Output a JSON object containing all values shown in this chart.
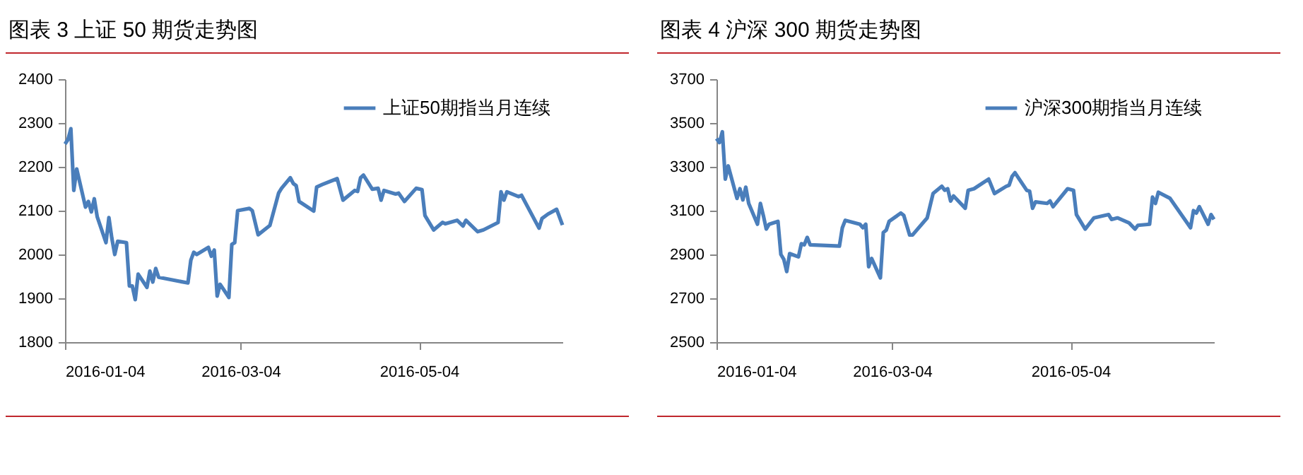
{
  "chart_data": [
    {
      "type": "line",
      "title": "图表 3 上证 50 期货走势图",
      "legend": "top right",
      "ylim": [
        1800,
        2400
      ],
      "yticks": [
        1800,
        1900,
        2000,
        2100,
        2200,
        2300,
        2400
      ],
      "xlim": [
        "2016-01-04",
        "2016-06-22"
      ],
      "xticks": [
        "2016-01-04",
        "2016-03-04",
        "2016-05-04"
      ],
      "x": [
        "2016-01-04",
        "2016-01-05",
        "2016-01-06",
        "2016-01-07",
        "2016-01-08",
        "2016-01-11",
        "2016-01-12",
        "2016-01-13",
        "2016-01-14",
        "2016-01-15",
        "2016-01-18",
        "2016-01-19",
        "2016-01-20",
        "2016-01-21",
        "2016-01-22",
        "2016-01-25",
        "2016-01-26",
        "2016-01-27",
        "2016-01-28",
        "2016-01-29",
        "2016-02-01",
        "2016-02-02",
        "2016-02-03",
        "2016-02-04",
        "2016-02-05",
        "2016-02-15",
        "2016-02-16",
        "2016-02-17",
        "2016-02-18",
        "2016-02-22",
        "2016-02-23",
        "2016-02-24",
        "2016-02-25",
        "2016-02-26",
        "2016-02-29",
        "2016-03-01",
        "2016-03-02",
        "2016-03-03",
        "2016-03-07",
        "2016-03-08",
        "2016-03-10",
        "2016-03-14",
        "2016-03-17",
        "2016-03-18",
        "2016-03-21",
        "2016-03-22",
        "2016-03-23",
        "2016-03-24",
        "2016-03-29",
        "2016-03-30",
        "2016-04-01",
        "2016-04-06",
        "2016-04-08",
        "2016-04-12",
        "2016-04-13",
        "2016-04-14",
        "2016-04-15",
        "2016-04-18",
        "2016-04-20",
        "2016-04-21",
        "2016-04-22",
        "2016-04-26",
        "2016-04-27",
        "2016-04-29",
        "2016-05-03",
        "2016-05-05",
        "2016-05-06",
        "2016-05-09",
        "2016-05-12",
        "2016-05-13",
        "2016-05-17",
        "2016-05-19",
        "2016-05-20",
        "2016-05-24",
        "2016-05-26",
        "2016-05-31",
        "2016-06-01",
        "2016-06-02",
        "2016-06-03",
        "2016-06-07",
        "2016-06-08",
        "2016-06-14",
        "2016-06-15",
        "2016-06-17",
        "2016-06-20",
        "2016-06-22"
      ],
      "series": [
        {
          "name": "上证50期指当月连续",
          "color": "#4a7ebb",
          "values": [
            2252,
            2262,
            2287,
            2146,
            2195,
            2108,
            2121,
            2097,
            2127,
            2086,
            2027,
            2084,
            2037,
            2000,
            2030,
            2027,
            1928,
            1928,
            1897,
            1955,
            1925,
            1962,
            1937,
            1968,
            1948,
            1935,
            1987,
            2005,
            2000,
            2016,
            1996,
            2010,
            1905,
            1932,
            1902,
            2023,
            2027,
            2100,
            2105,
            2100,
            2045,
            2066,
            2140,
            2151,
            2175,
            2162,
            2157,
            2121,
            2099,
            2154,
            2160,
            2173,
            2124,
            2146,
            2144,
            2175,
            2181,
            2149,
            2151,
            2124,
            2146,
            2138,
            2140,
            2121,
            2151,
            2148,
            2089,
            2056,
            2073,
            2070,
            2078,
            2065,
            2078,
            2052,
            2056,
            2073,
            2143,
            2124,
            2143,
            2132,
            2135,
            2060,
            2082,
            2092,
            2103,
            2067
          ]
        }
      ]
    },
    {
      "type": "line",
      "title": "图表 4 沪深 300 期货走势图",
      "legend": "top right",
      "ylim": [
        2500,
        3700
      ],
      "yticks": [
        2500,
        2700,
        2900,
        3100,
        3300,
        3500,
        3700
      ],
      "xlim": [
        "2016-01-04",
        "2016-06-22"
      ],
      "xticks": [
        "2016-01-04",
        "2016-03-04",
        "2016-05-04"
      ],
      "x": [
        "2016-01-04",
        "2016-01-05",
        "2016-01-06",
        "2016-01-07",
        "2016-01-08",
        "2016-01-11",
        "2016-01-12",
        "2016-01-13",
        "2016-01-14",
        "2016-01-15",
        "2016-01-18",
        "2016-01-19",
        "2016-01-20",
        "2016-01-21",
        "2016-01-22",
        "2016-01-25",
        "2016-01-26",
        "2016-01-27",
        "2016-01-28",
        "2016-01-29",
        "2016-02-01",
        "2016-02-02",
        "2016-02-03",
        "2016-02-04",
        "2016-02-05",
        "2016-02-15",
        "2016-02-16",
        "2016-02-17",
        "2016-02-22",
        "2016-02-23",
        "2016-02-24",
        "2016-02-25",
        "2016-02-26",
        "2016-02-29",
        "2016-03-01",
        "2016-03-02",
        "2016-03-03",
        "2016-03-07",
        "2016-03-08",
        "2016-03-10",
        "2016-03-11",
        "2016-03-16",
        "2016-03-18",
        "2016-03-21",
        "2016-03-22",
        "2016-03-23",
        "2016-03-24",
        "2016-03-25",
        "2016-03-29",
        "2016-03-30",
        "2016-04-01",
        "2016-04-06",
        "2016-04-08",
        "2016-04-12",
        "2016-04-13",
        "2016-04-14",
        "2016-04-15",
        "2016-04-19",
        "2016-04-20",
        "2016-04-21",
        "2016-04-22",
        "2016-04-26",
        "2016-04-27",
        "2016-04-28",
        "2016-05-03",
        "2016-05-05",
        "2016-05-06",
        "2016-05-09",
        "2016-05-12",
        "2016-05-17",
        "2016-05-18",
        "2016-05-20",
        "2016-05-24",
        "2016-05-26",
        "2016-05-27",
        "2016-05-31",
        "2016-06-01",
        "2016-06-02",
        "2016-06-03",
        "2016-06-07",
        "2016-06-14",
        "2016-06-15",
        "2016-06-16",
        "2016-06-17",
        "2016-06-20",
        "2016-06-21",
        "2016-06-22"
      ],
      "series": [
        {
          "name": "沪深300期指当月连续",
          "color": "#4a7ebb",
          "values": [
            3429,
            3411,
            3460,
            3244,
            3304,
            3156,
            3200,
            3149,
            3207,
            3133,
            3038,
            3133,
            3078,
            3016,
            3038,
            3051,
            2900,
            2878,
            2822,
            2904,
            2889,
            2949,
            2944,
            2978,
            2944,
            2938,
            3022,
            3056,
            3038,
            3022,
            3038,
            2844,
            2882,
            2793,
            3000,
            3011,
            3051,
            3089,
            3078,
            2989,
            2989,
            3067,
            3178,
            3211,
            3193,
            3200,
            3144,
            3167,
            3111,
            3193,
            3200,
            3244,
            3178,
            3211,
            3216,
            3256,
            3273,
            3193,
            3189,
            3111,
            3140,
            3133,
            3144,
            3118,
            3200,
            3193,
            3082,
            3016,
            3067,
            3082,
            3060,
            3067,
            3044,
            3016,
            3033,
            3038,
            3162,
            3133,
            3184,
            3156,
            3022,
            3100,
            3089,
            3118,
            3038,
            3082,
            3060
          ]
        }
      ]
    }
  ]
}
